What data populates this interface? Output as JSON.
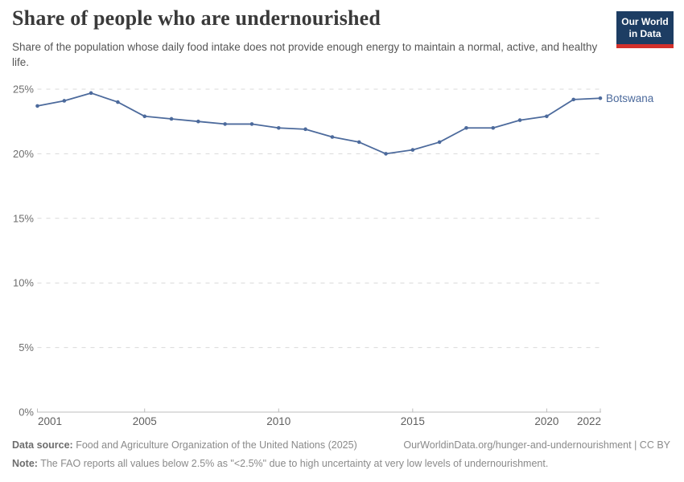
{
  "header": {
    "title": "Share of people who are undernourished",
    "subtitle": "Share of the population whose daily food intake does not provide enough energy to maintain a normal, active, and healthy life.",
    "logo": {
      "line1": "Our World",
      "line2": "in Data"
    }
  },
  "chart_data": {
    "type": "line",
    "title": "Share of people who are undernourished",
    "xlabel": "",
    "ylabel": "",
    "x": [
      2001,
      2002,
      2003,
      2004,
      2005,
      2006,
      2007,
      2008,
      2009,
      2010,
      2011,
      2012,
      2013,
      2014,
      2015,
      2016,
      2017,
      2018,
      2019,
      2020,
      2021,
      2022
    ],
    "series": [
      {
        "name": "Botswana",
        "color": "#4C6A9C",
        "values": [
          23.7,
          24.1,
          24.7,
          24.0,
          22.9,
          22.7,
          22.5,
          22.3,
          22.3,
          22.0,
          21.9,
          21.3,
          20.9,
          20.0,
          20.3,
          20.9,
          22.0,
          22.0,
          22.6,
          22.9,
          24.2,
          24.3
        ]
      }
    ],
    "xlim": [
      2001,
      2022
    ],
    "ylim": [
      0,
      25
    ],
    "y_ticks": [
      {
        "v": 0,
        "label": "0%"
      },
      {
        "v": 5,
        "label": "5%"
      },
      {
        "v": 10,
        "label": "10%"
      },
      {
        "v": 15,
        "label": "15%"
      },
      {
        "v": 20,
        "label": "20%"
      },
      {
        "v": 25,
        "label": "25%"
      }
    ],
    "x_ticks": [
      {
        "v": 2001,
        "label": "2001"
      },
      {
        "v": 2005,
        "label": "2005"
      },
      {
        "v": 2010,
        "label": "2010"
      },
      {
        "v": 2015,
        "label": "2015"
      },
      {
        "v": 2020,
        "label": "2020"
      },
      {
        "v": 2022,
        "label": "2022"
      }
    ],
    "grid": "horizontal-dashed",
    "legend_position": "line-end-label"
  },
  "footer": {
    "datasource_label": "Data source:",
    "datasource_text": "Food and Agriculture Organization of the United Nations (2025)",
    "link_text": "OurWorldinData.org/hunger-and-undernourishment | CC BY",
    "note_label": "Note:",
    "note_text": "The FAO reports all values below 2.5% as \"<2.5%\" due to high uncertainty at very low levels of undernourishment."
  },
  "colors": {
    "line": "#4C6A9C",
    "grid": "#d9d9d9",
    "axis": "#bdbdbd",
    "y_tick_text": "#6e6e6e",
    "x_tick_text": "#5f5f5f",
    "logo_bg": "#1d3d63",
    "logo_stripe": "#d3302b"
  }
}
